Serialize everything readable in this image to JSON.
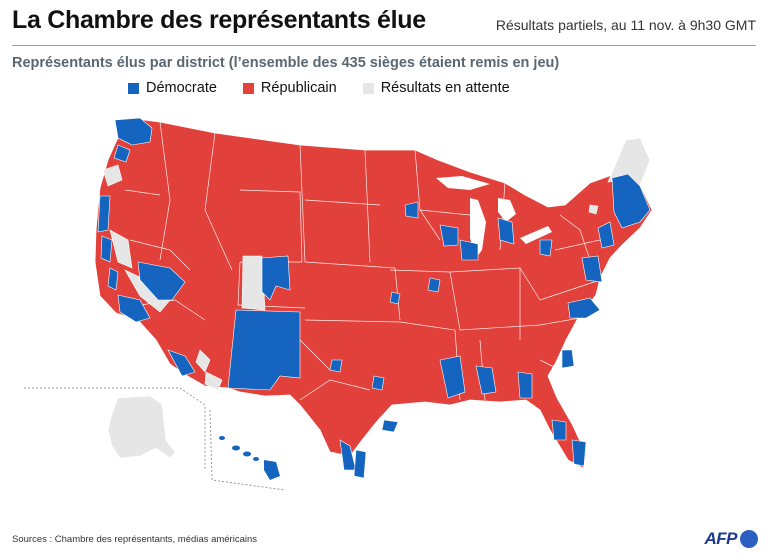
{
  "header": {
    "title": "La Chambre des représentants élue",
    "date": "Résultats partiels, au 11 nov. à 9h30 GMT"
  },
  "subtitle": "Représentants élus par district (l’ensemble des 435 sièges étaient remis en jeu)",
  "legend": [
    {
      "key": "dem",
      "label": "Démocrate",
      "color": "#1565c0"
    },
    {
      "key": "rep",
      "label": "Républicain",
      "color": "#e2403a"
    },
    {
      "key": "pending",
      "label": "Résultats en attente",
      "color": "#e6e6e6"
    }
  ],
  "colors": {
    "dem": "#1565c0",
    "rep": "#e2403a",
    "pending": "#e6e6e6",
    "border": "#ffffff"
  },
  "footer": {
    "sources": "Sources : Chambre des représentants, médias américains",
    "logo": "AFP"
  }
}
